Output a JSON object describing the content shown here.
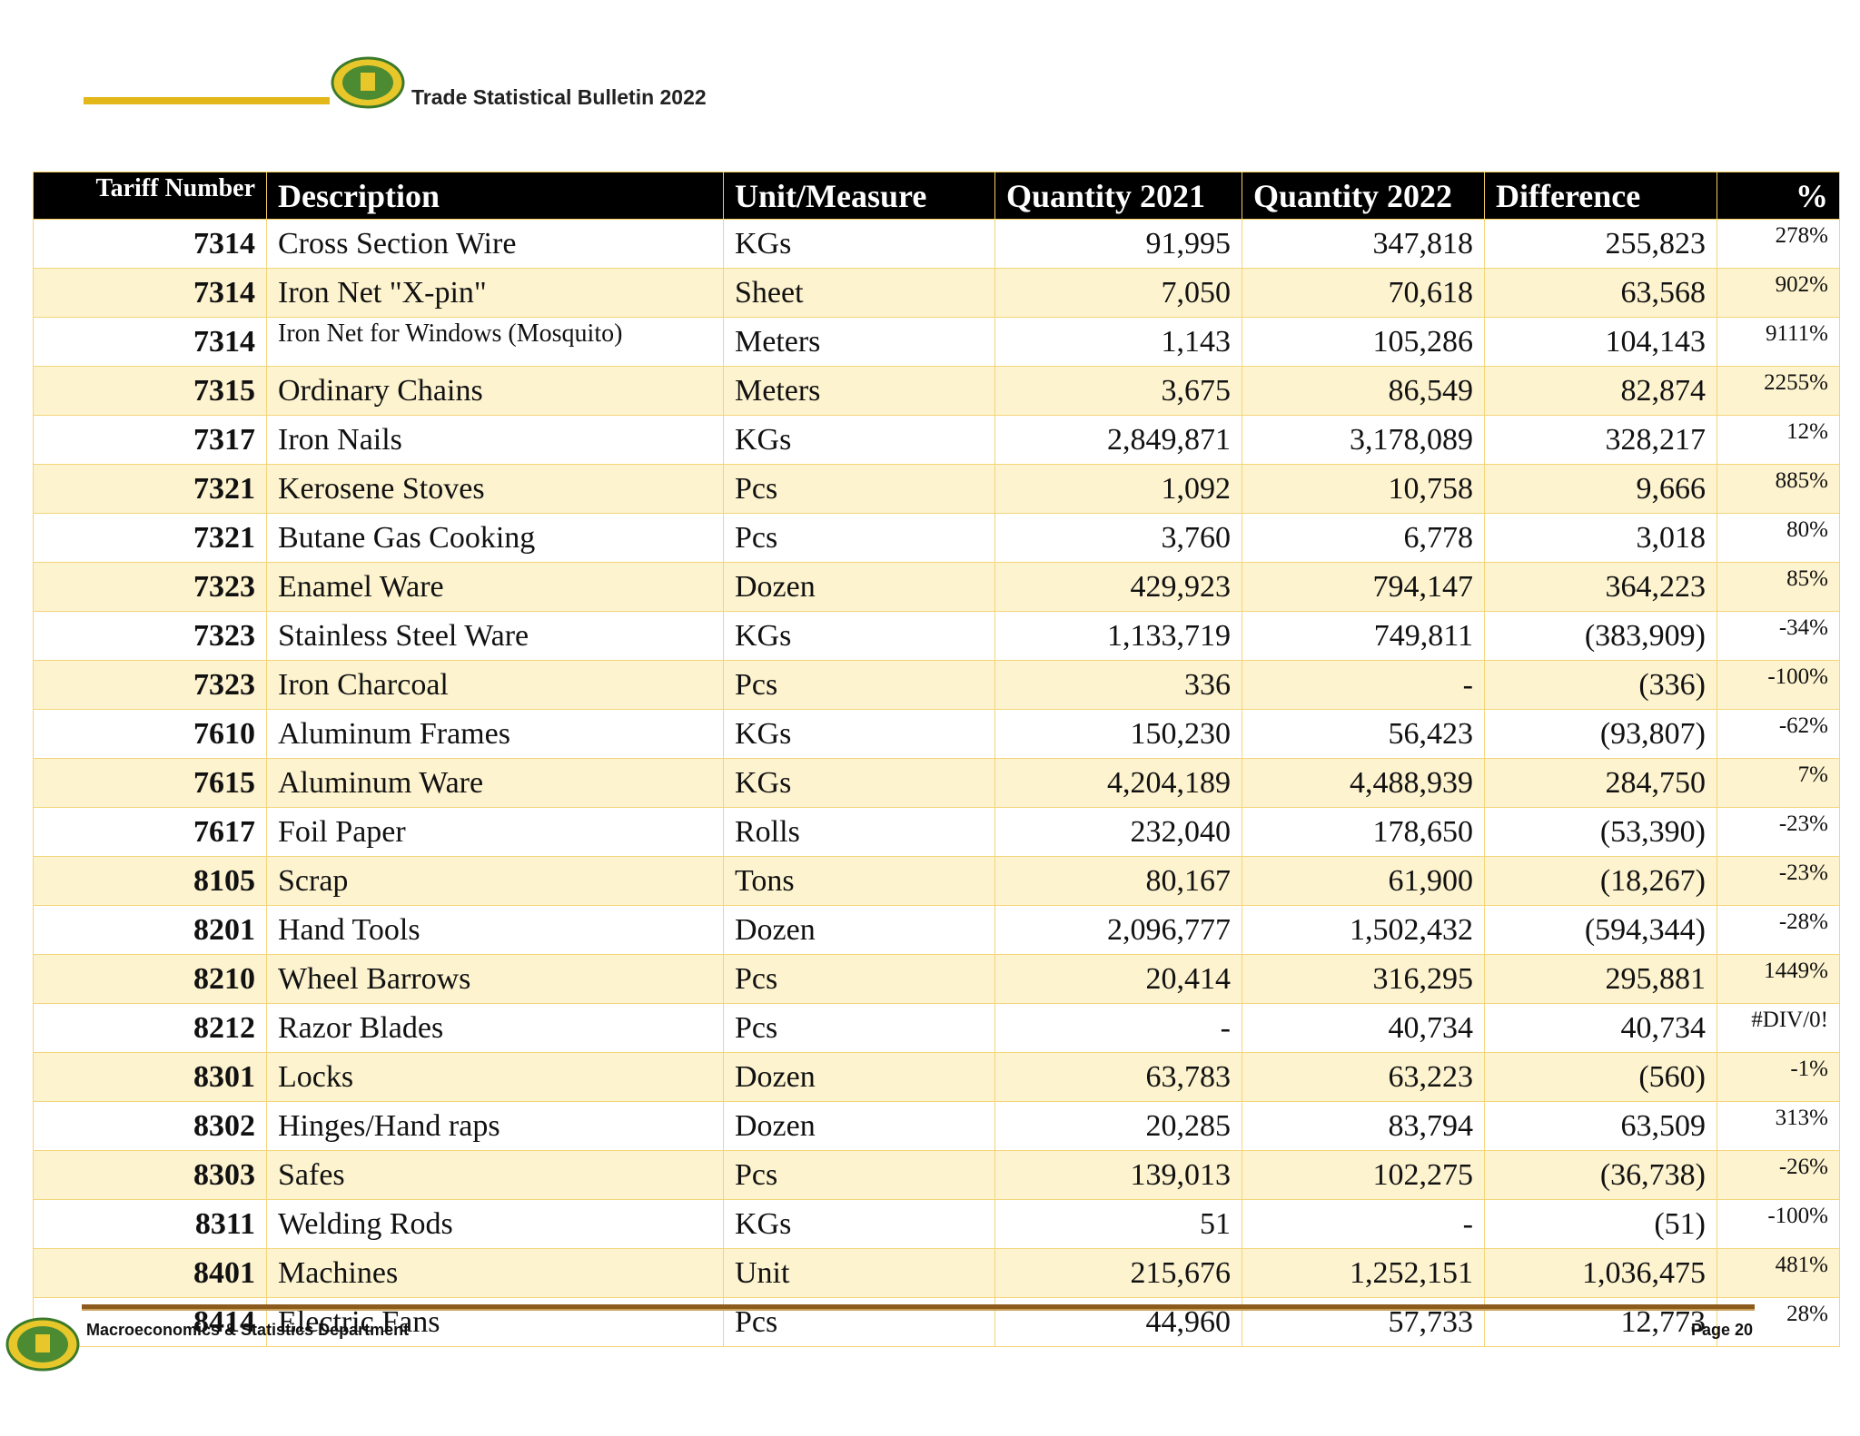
{
  "header": {
    "title": "Trade Statistical Bulletin 2022"
  },
  "table": {
    "columns": [
      "Tariff Number",
      "Description",
      "Unit/Measure",
      "Quantity 2021",
      "Quantity 2022",
      "Difference",
      "%"
    ],
    "rows": [
      [
        "7314",
        "Cross Section Wire",
        "KGs",
        "91,995",
        "347,818",
        "255,823",
        "278%"
      ],
      [
        "7314",
        "Iron Net \"X-pin\"",
        "Sheet",
        "7,050",
        "70,618",
        "63,568",
        "902%"
      ],
      [
        "7314",
        "Iron Net for Windows (Mosquito)",
        "Meters",
        "1,143",
        "105,286",
        "104,143",
        "9111%"
      ],
      [
        "7315",
        "Ordinary Chains",
        "Meters",
        "3,675",
        "86,549",
        "82,874",
        "2255%"
      ],
      [
        "7317",
        "Iron Nails",
        "KGs",
        "2,849,871",
        "3,178,089",
        "328,217",
        "12%"
      ],
      [
        "7321",
        "Kerosene Stoves",
        "Pcs",
        "1,092",
        "10,758",
        "9,666",
        "885%"
      ],
      [
        "7321",
        "Butane Gas Cooking",
        "Pcs",
        "3,760",
        "6,778",
        "3,018",
        "80%"
      ],
      [
        "7323",
        "Enamel Ware",
        "Dozen",
        "429,923",
        "794,147",
        "364,223",
        "85%"
      ],
      [
        "7323",
        "Stainless Steel Ware",
        "KGs",
        "1,133,719",
        "749,811",
        "(383,909)",
        "-34%"
      ],
      [
        "7323",
        "Iron Charcoal",
        "Pcs",
        "336",
        "-",
        "(336)",
        "-100%"
      ],
      [
        "7610",
        "Aluminum Frames",
        "KGs",
        "150,230",
        "56,423",
        "(93,807)",
        "-62%"
      ],
      [
        "7615",
        "Aluminum Ware",
        "KGs",
        "4,204,189",
        "4,488,939",
        "284,750",
        "7%"
      ],
      [
        "7617",
        "Foil Paper",
        "Rolls",
        "232,040",
        "178,650",
        "(53,390)",
        "-23%"
      ],
      [
        "8105",
        "Scrap",
        "Tons",
        "80,167",
        "61,900",
        "(18,267)",
        "-23%"
      ],
      [
        "8201",
        "Hand Tools",
        "Dozen",
        "2,096,777",
        "1,502,432",
        "(594,344)",
        "-28%"
      ],
      [
        "8210",
        "Wheel Barrows",
        "Pcs",
        "20,414",
        "316,295",
        "295,881",
        "1449%"
      ],
      [
        "8212",
        "Razor Blades",
        "Pcs",
        "-",
        "40,734",
        "40,734",
        "#DIV/0!"
      ],
      [
        "8301",
        "Locks",
        "Dozen",
        "63,783",
        "63,223",
        "(560)",
        "-1%"
      ],
      [
        "8302",
        "Hinges/Hand raps",
        "Dozen",
        "20,285",
        "83,794",
        "63,509",
        "313%"
      ],
      [
        "8303",
        "Safes",
        "Pcs",
        "139,013",
        "102,275",
        "(36,738)",
        "-26%"
      ],
      [
        "8311",
        "Welding Rods",
        "KGs",
        "51",
        "-",
        "(51)",
        "-100%"
      ],
      [
        "8401",
        "Machines",
        "Unit",
        "215,676",
        "1,252,151",
        "1,036,475",
        "481%"
      ],
      [
        "8414",
        "Electric Fans",
        "Pcs",
        "44,960",
        "57,733",
        "12,773",
        "28%"
      ]
    ]
  },
  "footer": {
    "department": "Macroeconomics & Statistics Department",
    "page": "Page 20"
  }
}
